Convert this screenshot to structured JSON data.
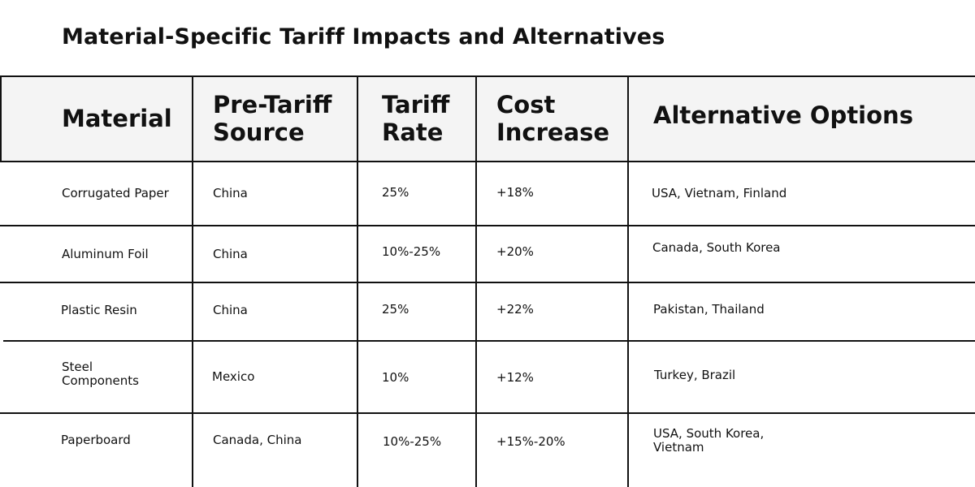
{
  "title": "Material-Specific Tariff Impacts and Alternatives",
  "columns": [
    "Material",
    "Pre-Tariff Source",
    "Tariff Rate",
    "Cost Increase",
    "Alternative Options"
  ],
  "rows": [
    {
      "material": "Corrugated Paper",
      "source": "China",
      "rate": "25%",
      "increase": "+18%",
      "alternatives": "USA, Vietnam, Finland"
    },
    {
      "material": "Aluminum Foil",
      "source": "China",
      "rate": "10%-25%",
      "increase": "+20%",
      "alternatives": "Canada, South Korea"
    },
    {
      "material": "Plastic Resin",
      "source": "China",
      "rate": "25%",
      "increase": "+22%",
      "alternatives": "Pakistan, Thailand"
    },
    {
      "material": "Steel Components",
      "source": "Mexico",
      "rate": "10%",
      "increase": "+12%",
      "alternatives": "Turkey, Brazil"
    },
    {
      "material": "Paperboard",
      "source": "Canada, China",
      "rate": "10%-25%",
      "increase": "+15%-20%",
      "alternatives": "USA, South Korea, Vietnam"
    }
  ]
}
